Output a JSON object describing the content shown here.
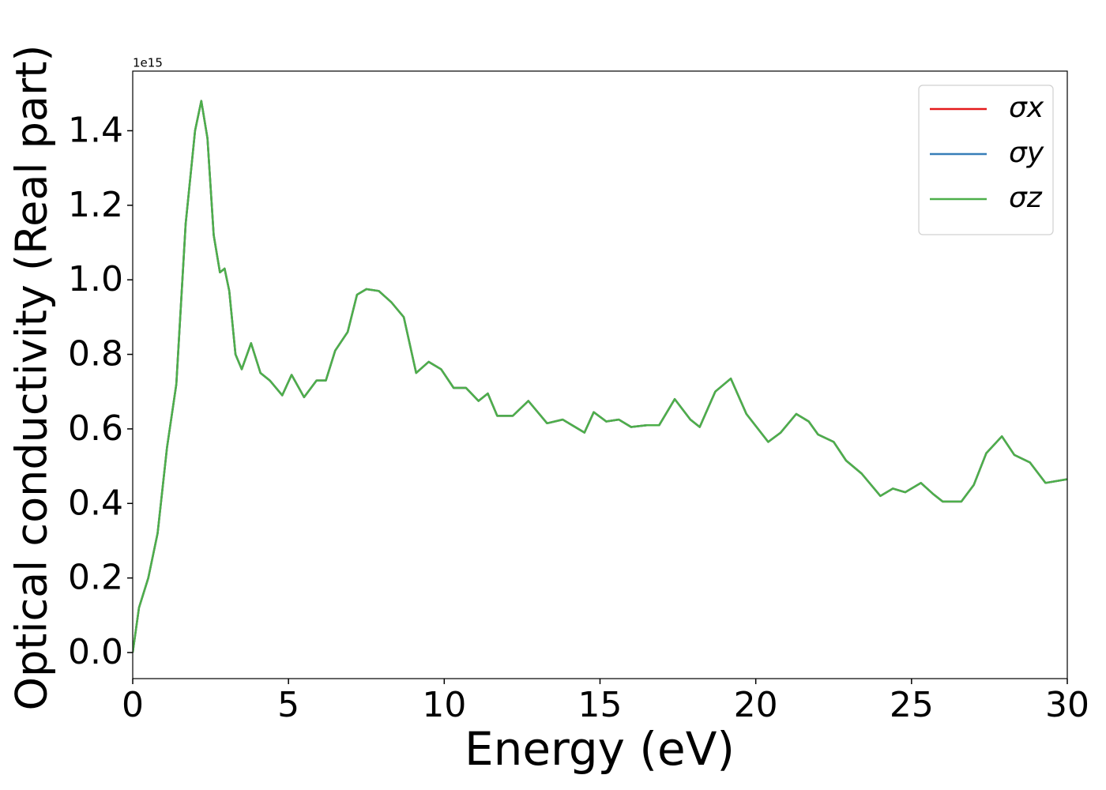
{
  "chart_data": {
    "type": "line",
    "y_label": "Optical conductivity (Real part)",
    "x_label": "Energy (eV)",
    "offset_text": "1e15",
    "x": [
      0,
      0.2,
      0.5,
      0.8,
      1.1,
      1.4,
      1.7,
      2.0,
      2.2,
      2.4,
      2.6,
      2.8,
      2.95,
      3.1,
      3.3,
      3.5,
      3.8,
      4.1,
      4.4,
      4.8,
      5.1,
      5.5,
      5.9,
      6.2,
      6.5,
      6.9,
      7.2,
      7.5,
      7.9,
      8.3,
      8.7,
      9.1,
      9.5,
      9.9,
      10.3,
      10.7,
      11.1,
      11.4,
      11.7,
      12.2,
      12.7,
      13.3,
      13.8,
      14.2,
      14.5,
      14.8,
      15.2,
      15.6,
      16.0,
      16.5,
      16.9,
      17.4,
      17.9,
      18.2,
      18.7,
      19.2,
      19.7,
      20.4,
      20.8,
      21.3,
      21.7,
      22.0,
      22.5,
      22.9,
      23.4,
      24.0,
      24.4,
      24.8,
      25.3,
      25.7,
      26.0,
      26.6,
      27.0,
      27.4,
      27.9,
      28.3,
      28.8,
      29.3,
      30.0
    ],
    "series": [
      {
        "name": "σx",
        "color": "#e41a1c",
        "values": [
          0.0,
          0.12,
          0.2,
          0.32,
          0.55,
          0.72,
          1.15,
          1.4,
          1.48,
          1.38,
          1.12,
          1.02,
          1.03,
          0.97,
          0.8,
          0.76,
          0.83,
          0.75,
          0.73,
          0.69,
          0.745,
          0.685,
          0.73,
          0.73,
          0.81,
          0.86,
          0.96,
          0.975,
          0.97,
          0.94,
          0.9,
          0.75,
          0.78,
          0.76,
          0.71,
          0.71,
          0.675,
          0.695,
          0.635,
          0.635,
          0.675,
          0.615,
          0.625,
          0.605,
          0.59,
          0.645,
          0.62,
          0.625,
          0.605,
          0.61,
          0.61,
          0.68,
          0.625,
          0.605,
          0.7,
          0.735,
          0.64,
          0.565,
          0.59,
          0.64,
          0.62,
          0.585,
          0.565,
          0.515,
          0.48,
          0.42,
          0.44,
          0.43,
          0.455,
          0.425,
          0.405,
          0.405,
          0.45,
          0.535,
          0.58,
          0.53,
          0.51,
          0.455,
          0.465
        ]
      },
      {
        "name": "σy",
        "color": "#377eb8",
        "values": [
          0.0,
          0.12,
          0.2,
          0.32,
          0.55,
          0.72,
          1.15,
          1.4,
          1.48,
          1.38,
          1.12,
          1.02,
          1.03,
          0.97,
          0.8,
          0.76,
          0.83,
          0.75,
          0.73,
          0.69,
          0.745,
          0.685,
          0.73,
          0.73,
          0.81,
          0.86,
          0.96,
          0.975,
          0.97,
          0.94,
          0.9,
          0.75,
          0.78,
          0.76,
          0.71,
          0.71,
          0.675,
          0.695,
          0.635,
          0.635,
          0.675,
          0.615,
          0.625,
          0.605,
          0.59,
          0.645,
          0.62,
          0.625,
          0.605,
          0.61,
          0.61,
          0.68,
          0.625,
          0.605,
          0.7,
          0.735,
          0.64,
          0.565,
          0.59,
          0.64,
          0.62,
          0.585,
          0.565,
          0.515,
          0.48,
          0.42,
          0.44,
          0.43,
          0.455,
          0.425,
          0.405,
          0.405,
          0.45,
          0.535,
          0.58,
          0.53,
          0.51,
          0.455,
          0.465
        ]
      },
      {
        "name": "σz",
        "color": "#4daf4a",
        "values": [
          0.0,
          0.12,
          0.2,
          0.32,
          0.55,
          0.72,
          1.15,
          1.4,
          1.48,
          1.38,
          1.12,
          1.02,
          1.03,
          0.97,
          0.8,
          0.76,
          0.83,
          0.75,
          0.73,
          0.69,
          0.745,
          0.685,
          0.73,
          0.73,
          0.81,
          0.86,
          0.96,
          0.975,
          0.97,
          0.94,
          0.9,
          0.75,
          0.78,
          0.76,
          0.71,
          0.71,
          0.675,
          0.695,
          0.635,
          0.635,
          0.675,
          0.615,
          0.625,
          0.605,
          0.59,
          0.645,
          0.62,
          0.625,
          0.605,
          0.61,
          0.61,
          0.68,
          0.625,
          0.605,
          0.7,
          0.735,
          0.64,
          0.565,
          0.59,
          0.64,
          0.62,
          0.585,
          0.565,
          0.515,
          0.48,
          0.42,
          0.44,
          0.43,
          0.455,
          0.425,
          0.405,
          0.405,
          0.45,
          0.535,
          0.58,
          0.53,
          0.51,
          0.455,
          0.465
        ]
      }
    ],
    "xlim": [
      0,
      30
    ],
    "xticks": [
      0,
      5,
      10,
      15,
      20,
      25,
      30
    ],
    "ylim": [
      -0.07,
      1.56
    ],
    "yticks": [
      {
        "value": 0,
        "label": "0.0"
      },
      0.2,
      0.4,
      0.6,
      0.8,
      {
        "value": 1,
        "label": "1.0"
      },
      1.2,
      1.4
    ],
    "grid": false,
    "legend": "upper right"
  }
}
